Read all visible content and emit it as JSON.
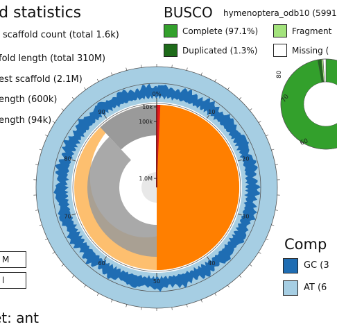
{
  "header": {
    "title": "ld statistics",
    "busco_title": "BUSCO",
    "busco_lineage": "hymenoptera_odb10 (5991"
  },
  "stats": [
    {
      "id": "scaffold-count",
      "label": "scaffold count (total 1.6k)",
      "color": "#000000"
    },
    {
      "id": "scaffold-length",
      "label": "fold length (total 310M)",
      "color": "#9a9a9a"
    },
    {
      "id": "longest-scaffold",
      "label": "est scaffold (2.1M)",
      "color": "#e31a1c"
    },
    {
      "id": "n50",
      "label": "ength (600k)",
      "color": "#ff7f00"
    },
    {
      "id": "n90",
      "label": "ength (94k)",
      "color": "#fdbf6f"
    }
  ],
  "busco_legend": [
    {
      "id": "complete",
      "label": "Complete (97.1%)",
      "color": "#33a02c"
    },
    {
      "id": "fragmented",
      "label": "Fragment",
      "color": "#a3e37c"
    },
    {
      "id": "duplicated",
      "label": "Duplicated (1.3%)",
      "color": "#1e6b1a"
    },
    {
      "id": "missing",
      "label": "Missing (",
      "color": "#ffffff"
    }
  ],
  "composition": {
    "title": "Comp",
    "items": [
      {
        "id": "gc",
        "label": "GC (3",
        "color": "#1f6db3"
      },
      {
        "id": "at",
        "label": "AT (6",
        "color": "#a6cee3"
      }
    ]
  },
  "footer": {
    "dataset": "et: ant",
    "box1": "M",
    "box2": "l"
  },
  "chart_data": [
    {
      "type": "snail",
      "description_values": {
        "scaffold_count_total": "1.6k",
        "scaffold_length_total": "310M",
        "longest_scaffold": "2.1M",
        "n50": "600k",
        "n90": "94k"
      },
      "radial_scale_labels": [
        "1.0M",
        "100k",
        "10k"
      ],
      "percent_ticks": [
        0,
        10,
        20,
        30,
        40,
        50,
        60,
        70,
        80,
        90
      ],
      "n50_percent": 50,
      "n90_percent": 90,
      "longest_scaffold_percent": 0.7,
      "inner_gray_wedge_percent": [
        0,
        12
      ],
      "colors": {
        "scaffold_length": "#9a9a9a",
        "n50": "#ff7f00",
        "n90": "#fdbf6f",
        "longest": "#e31a1c",
        "gc": "#1f6db3",
        "at": "#a6cee3",
        "log_background": "#e0e0e0"
      }
    },
    {
      "type": "pie",
      "name": "BUSCO",
      "tick_labels": [
        "80",
        "70",
        "60"
      ],
      "values": [
        97.1,
        1.3,
        0.6,
        1.0
      ],
      "categories": [
        "Complete",
        "Duplicated",
        "Fragmented",
        "Missing"
      ],
      "colors": [
        "#33a02c",
        "#1e6b1a",
        "#a3e37c",
        "#ffffff"
      ]
    }
  ]
}
